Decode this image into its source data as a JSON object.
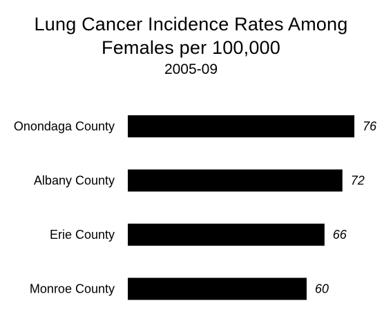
{
  "chart_data": {
    "type": "bar",
    "orientation": "horizontal",
    "title": "Lung Cancer Incidence Rates Among Females per 100,000",
    "title_lines": [
      "Lung Cancer Incidence Rates Among",
      "Females per 100,000"
    ],
    "subtitle": "2005-09",
    "categories": [
      "Onondaga County",
      "Albany County",
      "Erie County",
      "Monroe County"
    ],
    "values": [
      76,
      72,
      66,
      60
    ],
    "value_labels": [
      "76",
      "72",
      "66",
      "60"
    ],
    "xlabel": "",
    "ylabel": "",
    "xlim": [
      0,
      76
    ],
    "grid": false,
    "legend": "none",
    "bar_color": "#000000"
  }
}
